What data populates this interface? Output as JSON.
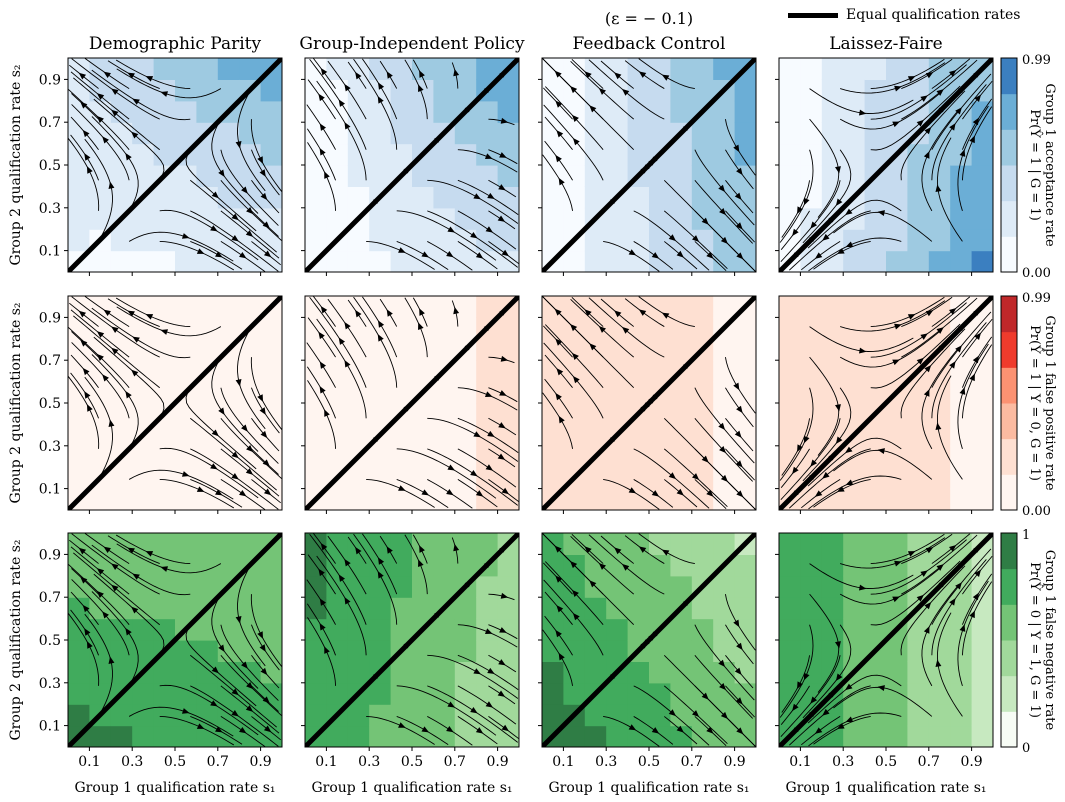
{
  "annotation": "(ε = − 0.1)",
  "legend": {
    "label": "Equal qualification rates"
  },
  "column_titles": [
    "Demographic Parity",
    "Group-Independent Policy",
    "Feedback Control",
    "Laissez-Faire"
  ],
  "xlabel": "Group 1 qualification rate s₁",
  "ylabel": "Group 2 qualification rate s₂",
  "ticks": [
    "0.1",
    "0.3",
    "0.5",
    "0.7",
    "0.9"
  ],
  "rows": [
    {
      "colorbar_label_1": "Group 1 acceptance rate",
      "colorbar_label_2": "Pr(Ŷ = 1 | G = 1)",
      "colorbar_min": "0.00",
      "colorbar_max": "0.99",
      "colormap": [
        "#f7fbff",
        "#deebf7",
        "#c6dbef",
        "#9ecae1",
        "#6baed6",
        "#3b7fc0"
      ]
    },
    {
      "colorbar_label_1": "Group 1 false positive rate",
      "colorbar_label_2": "Pr(Ŷ = 1 | Y = 0, G = 1)",
      "colorbar_min": "0.00",
      "colorbar_max": "0.99",
      "colormap": [
        "#fff5f0",
        "#fee0d2",
        "#fcbba1",
        "#fc9272",
        "#ef3b2c",
        "#c0282a"
      ]
    },
    {
      "colorbar_label_1": "Group 1 false negative rate",
      "colorbar_label_2": "Pr(Ŷ = 0 | Y = 1, G = 1)",
      "colorbar_min": "0",
      "colorbar_max": "1",
      "colormap": [
        "#f7fcf5",
        "#c7e9c0",
        "#a1d99b",
        "#74c476",
        "#41ab5d",
        "#2f7d45"
      ]
    }
  ],
  "chart_data": {
    "type": "heatmap",
    "description_overlay": "streamline phase portraits over shaded contour maps",
    "xlim": [
      0,
      1
    ],
    "ylim": [
      0,
      1
    ],
    "diagonal": "equal qualification rates (s1 = s2)",
    "panels": [
      {
        "row": 0,
        "col": 0,
        "metric": "acceptance rate",
        "policy": "Demographic Parity",
        "min": 0.0,
        "max": 0.99
      },
      {
        "row": 0,
        "col": 1,
        "metric": "acceptance rate",
        "policy": "Group-Independent Policy",
        "min": 0.0,
        "max": 0.99
      },
      {
        "row": 0,
        "col": 2,
        "metric": "acceptance rate",
        "policy": "Feedback Control",
        "min": 0.0,
        "max": 0.99
      },
      {
        "row": 0,
        "col": 3,
        "metric": "acceptance rate",
        "policy": "Laissez-Faire",
        "min": 0.0,
        "max": 0.99
      },
      {
        "row": 1,
        "col": 0,
        "metric": "false positive rate",
        "policy": "Demographic Parity",
        "min": 0.0,
        "max": 0.99
      },
      {
        "row": 1,
        "col": 1,
        "metric": "false positive rate",
        "policy": "Group-Independent Policy",
        "min": 0.0,
        "max": 0.99
      },
      {
        "row": 1,
        "col": 2,
        "metric": "false positive rate",
        "policy": "Feedback Control",
        "min": 0.0,
        "max": 0.99
      },
      {
        "row": 1,
        "col": 3,
        "metric": "false positive rate",
        "policy": "Laissez-Faire",
        "min": 0.0,
        "max": 0.99
      },
      {
        "row": 2,
        "col": 0,
        "metric": "false negative rate",
        "policy": "Demographic Parity",
        "min": 0,
        "max": 1
      },
      {
        "row": 2,
        "col": 1,
        "metric": "false negative rate",
        "policy": "Group-Independent Policy",
        "min": 0,
        "max": 1
      },
      {
        "row": 2,
        "col": 2,
        "metric": "false negative rate",
        "policy": "Feedback Control",
        "min": 0,
        "max": 1
      },
      {
        "row": 2,
        "col": 3,
        "metric": "false negative rate",
        "policy": "Laissez-Faire",
        "min": 0,
        "max": 1
      }
    ]
  }
}
